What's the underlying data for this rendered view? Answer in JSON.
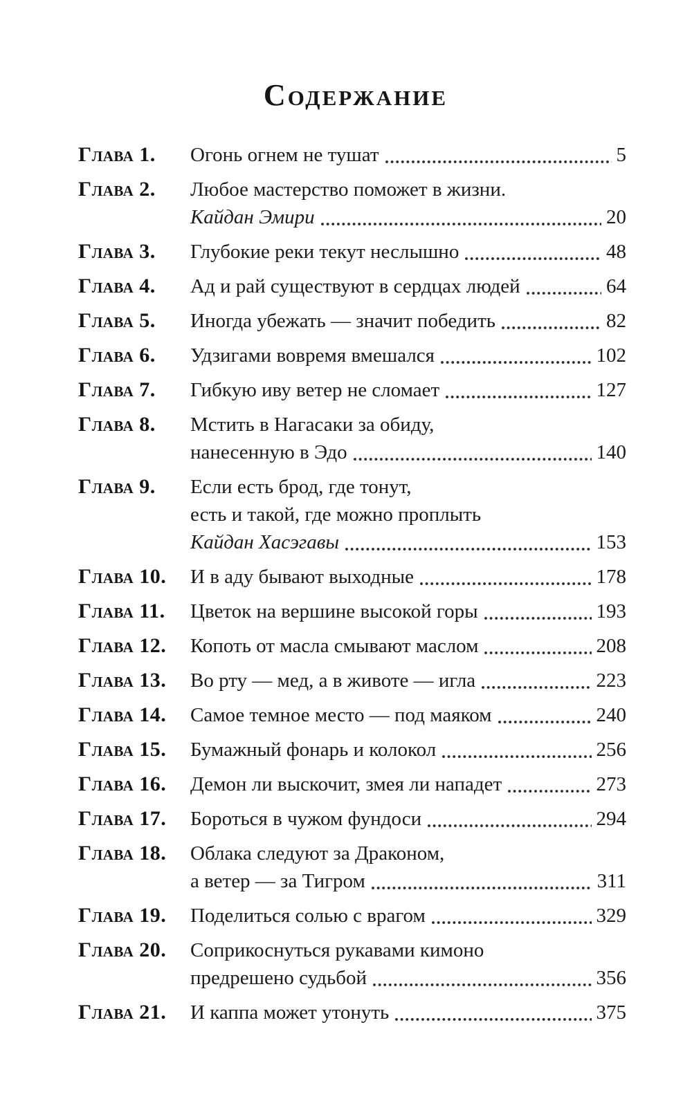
{
  "page": {
    "title": "Содержание",
    "entries": [
      {
        "label": "Глава 1.",
        "lines": [
          {
            "text": "Огонь огнем не тушат",
            "italic": false
          }
        ],
        "page": "5"
      },
      {
        "label": "Глава 2.",
        "lines": [
          {
            "text": "Любое мастерство поможет в жизни.",
            "italic": false
          },
          {
            "text": "Кайдан Эмири",
            "italic": true
          }
        ],
        "page": "20"
      },
      {
        "label": "Глава 3.",
        "lines": [
          {
            "text": "Глубокие реки текут неслышно",
            "italic": false
          }
        ],
        "page": "48"
      },
      {
        "label": "Глава 4.",
        "lines": [
          {
            "text": "Ад и рай существуют в сердцах людей",
            "italic": false
          }
        ],
        "page": "64"
      },
      {
        "label": "Глава 5.",
        "lines": [
          {
            "text": "Иногда убежать — значит победить",
            "italic": false
          }
        ],
        "page": "82"
      },
      {
        "label": "Глава 6.",
        "lines": [
          {
            "text": "Удзигами вовремя вмешался",
            "italic": false
          }
        ],
        "page": "102"
      },
      {
        "label": "Глава 7.",
        "lines": [
          {
            "text": "Гибкую иву ветер не сломает",
            "italic": false
          }
        ],
        "page": "127"
      },
      {
        "label": "Глава 8.",
        "lines": [
          {
            "text": "Мстить в Нагасаки за обиду,",
            "italic": false
          },
          {
            "text": "нанесенную в Эдо",
            "italic": false
          }
        ],
        "page": "140"
      },
      {
        "label": "Глава 9.",
        "lines": [
          {
            "text": "Если есть брод, где тонут,",
            "italic": false
          },
          {
            "text": "есть и такой, где можно проплыть",
            "italic": false
          },
          {
            "text": "Кайдан Хасэгавы",
            "italic": true
          }
        ],
        "page": "153"
      },
      {
        "label": "Глава 10.",
        "lines": [
          {
            "text": "И в аду бывают выходные",
            "italic": false
          }
        ],
        "page": "178"
      },
      {
        "label": "Глава 11.",
        "lines": [
          {
            "text": "Цветок на вершине высокой горы",
            "italic": false
          }
        ],
        "page": "193"
      },
      {
        "label": "Глава 12.",
        "lines": [
          {
            "text": "Копоть от масла смывают маслом",
            "italic": false
          }
        ],
        "page": "208"
      },
      {
        "label": "Глава 13.",
        "lines": [
          {
            "text": "Во рту — мед, а в животе — игла",
            "italic": false
          }
        ],
        "page": "223"
      },
      {
        "label": "Глава 14.",
        "lines": [
          {
            "text": "Самое темное место — под маяком",
            "italic": false
          }
        ],
        "page": "240"
      },
      {
        "label": "Глава 15.",
        "lines": [
          {
            "text": "Бумажный фонарь и колокол",
            "italic": false
          }
        ],
        "page": "256"
      },
      {
        "label": "Глава 16.",
        "lines": [
          {
            "text": "Демон ли выскочит, змея ли нападет",
            "italic": false
          }
        ],
        "page": "273"
      },
      {
        "label": "Глава 17.",
        "lines": [
          {
            "text": "Бороться в чужом фундоси",
            "italic": false
          }
        ],
        "page": "294"
      },
      {
        "label": "Глава 18.",
        "lines": [
          {
            "text": "Облака следуют за Драконом,",
            "italic": false
          },
          {
            "text": "а ветер — за Тигром",
            "italic": false
          }
        ],
        "page": "311"
      },
      {
        "label": "Глава 19.",
        "lines": [
          {
            "text": "Поделиться солью с врагом",
            "italic": false
          }
        ],
        "page": "329"
      },
      {
        "label": "Глава 20.",
        "lines": [
          {
            "text": "Соприкоснуться рукавами кимоно",
            "italic": false
          },
          {
            "text": "предрешено судьбой",
            "italic": false
          }
        ],
        "page": "356"
      },
      {
        "label": "Глава 21.",
        "lines": [
          {
            "text": "И каппа может утонуть",
            "italic": false
          }
        ],
        "page": "375"
      }
    ]
  }
}
